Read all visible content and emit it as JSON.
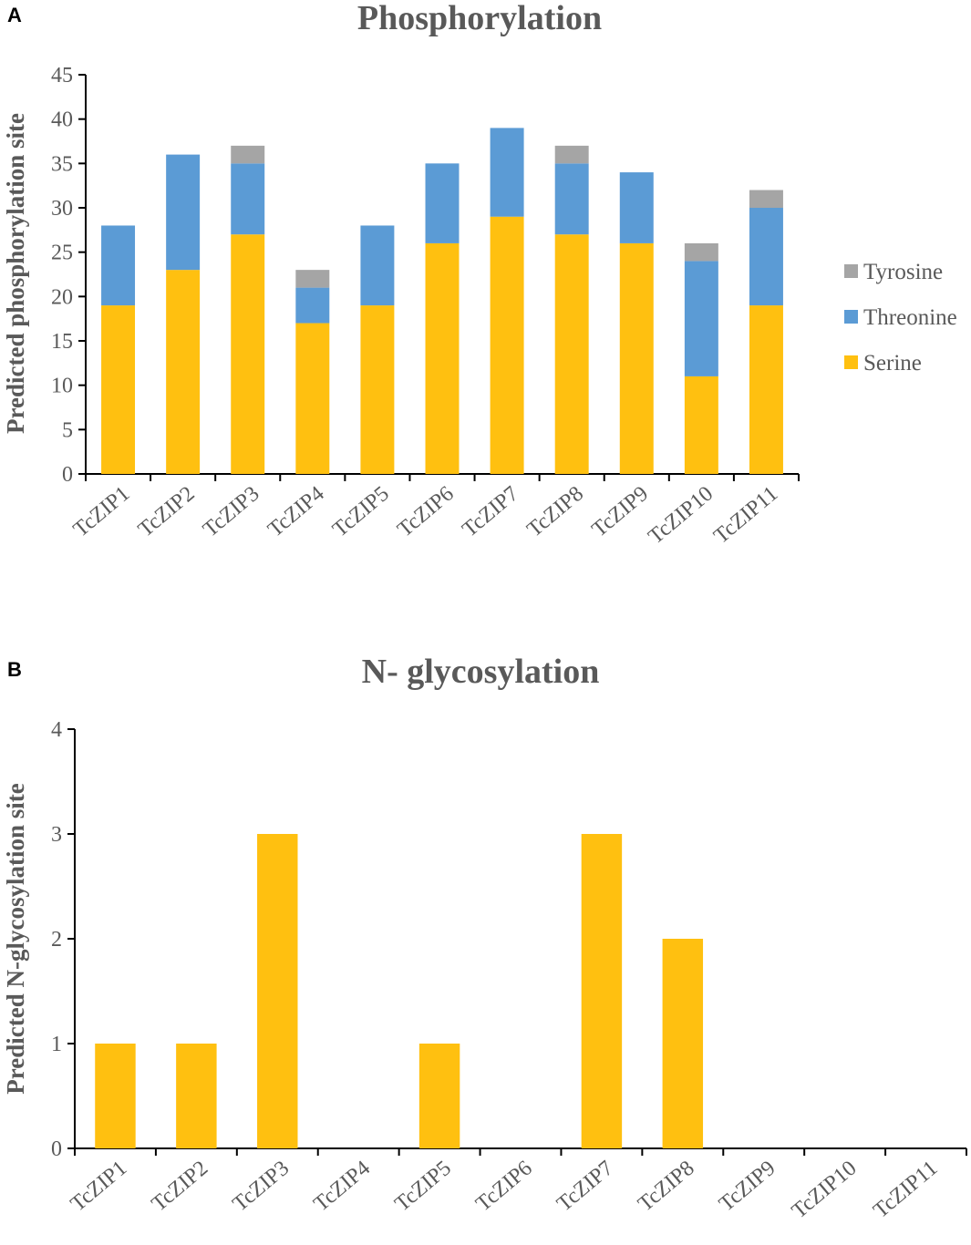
{
  "colors": {
    "serine": "#FFC010",
    "threonine": "#5B9BD5",
    "tyrosine": "#A5A5A5",
    "axis": "#000000",
    "text": "#595959",
    "title": "#595959"
  },
  "chart_data": [
    {
      "panel_label": "A",
      "type": "bar",
      "stacked": true,
      "title": "Phosphorylation",
      "xlabel": "",
      "ylabel": "Predicted phosphorylation site",
      "ylim": [
        0,
        45
      ],
      "yticks": [
        0,
        5,
        10,
        15,
        20,
        25,
        30,
        35,
        40,
        45
      ],
      "grid": false,
      "legend_position": "right",
      "categories": [
        "TcZIP1",
        "TcZIP2",
        "TcZIP3",
        "TcZIP4",
        "TcZIP5",
        "TcZIP6",
        "TcZIP7",
        "TcZIP8",
        "TcZIP9",
        "TcZIP10",
        "TcZIP11"
      ],
      "series": [
        {
          "name": "Serine",
          "color": "#FFC010",
          "values": [
            19,
            23,
            27,
            17,
            19,
            26,
            29,
            27,
            26,
            11,
            19
          ]
        },
        {
          "name": "Threonine",
          "color": "#5B9BD5",
          "values": [
            9,
            13,
            8,
            4,
            9,
            9,
            10,
            8,
            8,
            13,
            11
          ]
        },
        {
          "name": "Tyrosine",
          "color": "#A5A5A5",
          "values": [
            0,
            0,
            2,
            2,
            0,
            0,
            0,
            2,
            0,
            2,
            2
          ]
        }
      ],
      "legend_order": [
        "Tyrosine",
        "Threonine",
        "Serine"
      ]
    },
    {
      "panel_label": "B",
      "type": "bar",
      "stacked": false,
      "title": "N- glycosylation",
      "xlabel": "",
      "ylabel": "Predicted N-glycosylation site",
      "ylim": [
        0,
        4
      ],
      "yticks": [
        0,
        1,
        2,
        3,
        4
      ],
      "grid": false,
      "categories": [
        "TcZIP1",
        "TcZIP2",
        "TcZIP3",
        "TcZIP4",
        "TcZIP5",
        "TcZIP6",
        "TcZIP7",
        "TcZIP8",
        "TcZIP9",
        "TcZIP10",
        "TcZIP11"
      ],
      "series": [
        {
          "name": "N-glycosylation",
          "color": "#FFC010",
          "values": [
            1,
            1,
            3,
            0,
            1,
            0,
            3,
            2,
            0,
            0,
            0
          ]
        }
      ]
    }
  ]
}
